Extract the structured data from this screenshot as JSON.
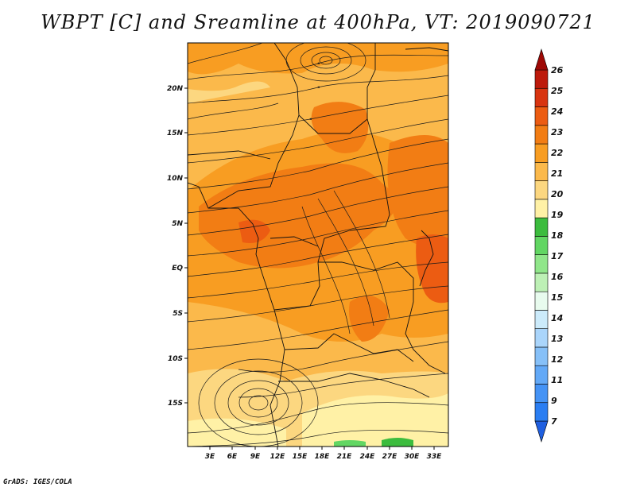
{
  "title": "WBPT [C] and Sreamline at 400hPa, VT: 2019090721",
  "credit": "GrADS: IGES/COLA",
  "map": {
    "lat_labels": [
      "20N",
      "15N",
      "10N",
      "5N",
      "EQ",
      "5S",
      "10S",
      "15S"
    ],
    "lon_labels": [
      "3E",
      "6E",
      "9E",
      "12E",
      "15E",
      "18E",
      "21E",
      "24E",
      "27E",
      "30E",
      "33E"
    ]
  },
  "colorbar": {
    "levels": [
      "7",
      "9",
      "11",
      "12",
      "13",
      "14",
      "15",
      "16",
      "17",
      "18",
      "19",
      "20",
      "21",
      "22",
      "23",
      "24",
      "25",
      "26"
    ],
    "colors": [
      "#1f5fe0",
      "#2b7ef2",
      "#4593f5",
      "#63a9f7",
      "#86c0f8",
      "#aad5fb",
      "#ccebfb",
      "#e8fbee",
      "#bdf0b5",
      "#90e68a",
      "#62d663",
      "#3cbc3e",
      "#fff1a6",
      "#fcd780",
      "#fbb94b",
      "#f89d22",
      "#f27d14",
      "#ec5c12",
      "#d83410",
      "#bd1a0b",
      "#9e0805"
    ]
  },
  "colors": {
    "background": "#ffffff",
    "frame": "#000000",
    "streamline": "#1a1a1a"
  }
}
